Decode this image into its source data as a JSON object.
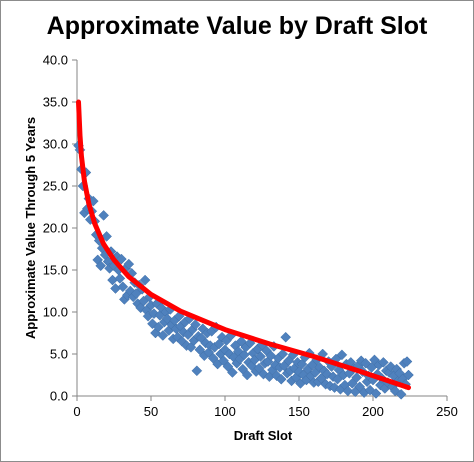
{
  "chart_data": {
    "type": "scatter",
    "title": "Approximate Value by Draft Slot",
    "xlabel": "Draft Slot",
    "ylabel": "Approximate Value Through 5 Years",
    "xlim": [
      0,
      250
    ],
    "ylim": [
      0,
      40
    ],
    "x_ticks": [
      "0",
      "50",
      "100",
      "150",
      "200",
      "250"
    ],
    "y_ticks": [
      "0.0",
      "5.0",
      "10.0",
      "15.0",
      "20.0",
      "25.0",
      "30.0",
      "35.0",
      "40.0"
    ],
    "grid": false,
    "legend": "none",
    "colors": {
      "points": "#4f81bd",
      "trendline": "#ff0000"
    },
    "series": [
      {
        "kind": "points",
        "points": [
          [
            1,
            29.8
          ],
          [
            2,
            29.3
          ],
          [
            3,
            27.0
          ],
          [
            4,
            25.0
          ],
          [
            5,
            21.8
          ],
          [
            6,
            26.6
          ],
          [
            7,
            22.3
          ],
          [
            8,
            23.5
          ],
          [
            9,
            21.0
          ],
          [
            10,
            22.0
          ],
          [
            11,
            23.2
          ],
          [
            12,
            20.8
          ],
          [
            13,
            19.2
          ],
          [
            14,
            16.2
          ],
          [
            15,
            18.5
          ],
          [
            16,
            15.5
          ],
          [
            17,
            17.6
          ],
          [
            18,
            21.5
          ],
          [
            19,
            16.8
          ],
          [
            20,
            19.0
          ],
          [
            21,
            16.0
          ],
          [
            22,
            15.2
          ],
          [
            23,
            17.2
          ],
          [
            24,
            13.8
          ],
          [
            25,
            15.5
          ],
          [
            26,
            12.8
          ],
          [
            27,
            16.6
          ],
          [
            28,
            15.0
          ],
          [
            29,
            14.0
          ],
          [
            30,
            16.3
          ],
          [
            31,
            13.0
          ],
          [
            32,
            11.5
          ],
          [
            33,
            15.2
          ],
          [
            34,
            12.0
          ],
          [
            35,
            15.7
          ],
          [
            36,
            12.5
          ],
          [
            37,
            14.6
          ],
          [
            38,
            11.8
          ],
          [
            39,
            13.5
          ],
          [
            40,
            12.2
          ],
          [
            41,
            11.0
          ],
          [
            42,
            13.2
          ],
          [
            43,
            10.5
          ],
          [
            44,
            12.7
          ],
          [
            45,
            11.3
          ],
          [
            46,
            13.8
          ],
          [
            47,
            10.2
          ],
          [
            48,
            9.5
          ],
          [
            49,
            11.8
          ],
          [
            50,
            10.8
          ],
          [
            51,
            8.6
          ],
          [
            52,
            9.8
          ],
          [
            53,
            7.5
          ],
          [
            54,
            11.0
          ],
          [
            55,
            8.2
          ],
          [
            56,
            9.6
          ],
          [
            57,
            10.5
          ],
          [
            58,
            7.2
          ],
          [
            59,
            8.8
          ],
          [
            60,
            10.0
          ],
          [
            61,
            9.2
          ],
          [
            62,
            7.8
          ],
          [
            63,
            10.3
          ],
          [
            64,
            8.5
          ],
          [
            65,
            6.8
          ],
          [
            66,
            9.0
          ],
          [
            67,
            8.0
          ],
          [
            68,
            7.0
          ],
          [
            69,
            9.5
          ],
          [
            70,
            8.3
          ],
          [
            71,
            6.5
          ],
          [
            72,
            7.6
          ],
          [
            73,
            8.8
          ],
          [
            74,
            6.0
          ],
          [
            75,
            7.3
          ],
          [
            76,
            9.2
          ],
          [
            77,
            5.8
          ],
          [
            78,
            7.9
          ],
          [
            79,
            6.6
          ],
          [
            80,
            8.5
          ],
          [
            81,
            3.0
          ],
          [
            82,
            7.1
          ],
          [
            83,
            5.5
          ],
          [
            84,
            6.9
          ],
          [
            85,
            8.0
          ],
          [
            86,
            4.8
          ],
          [
            87,
            6.3
          ],
          [
            88,
            7.5
          ],
          [
            89,
            5.2
          ],
          [
            90,
            6.0
          ],
          [
            91,
            7.7
          ],
          [
            92,
            4.5
          ],
          [
            93,
            5.8
          ],
          [
            94,
            8.2
          ],
          [
            95,
            3.8
          ],
          [
            96,
            6.2
          ],
          [
            97,
            5.0
          ],
          [
            98,
            7.0
          ],
          [
            99,
            4.2
          ],
          [
            100,
            5.5
          ],
          [
            101,
            6.6
          ],
          [
            102,
            3.5
          ],
          [
            103,
            5.0
          ],
          [
            104,
            7.2
          ],
          [
            105,
            2.8
          ],
          [
            106,
            4.6
          ],
          [
            107,
            6.0
          ],
          [
            108,
            3.9
          ],
          [
            109,
            5.3
          ],
          [
            110,
            4.4
          ],
          [
            111,
            6.5
          ],
          [
            112,
            3.2
          ],
          [
            113,
            4.9
          ],
          [
            114,
            5.8
          ],
          [
            115,
            2.5
          ],
          [
            116,
            4.0
          ],
          [
            117,
            6.3
          ],
          [
            118,
            3.6
          ],
          [
            119,
            5.1
          ],
          [
            120,
            4.3
          ],
          [
            121,
            2.9
          ],
          [
            122,
            5.6
          ],
          [
            123,
            3.3
          ],
          [
            124,
            4.7
          ],
          [
            125,
            6.1
          ],
          [
            126,
            2.6
          ],
          [
            127,
            3.9
          ],
          [
            128,
            5.4
          ],
          [
            129,
            4.1
          ],
          [
            130,
            2.3
          ],
          [
            131,
            4.8
          ],
          [
            132,
            3.1
          ],
          [
            133,
            5.9
          ],
          [
            134,
            3.7
          ],
          [
            135,
            2.4
          ],
          [
            136,
            4.5
          ],
          [
            137,
            3.4
          ],
          [
            138,
            2.0
          ],
          [
            139,
            5.0
          ],
          [
            140,
            3.6
          ],
          [
            141,
            7.0
          ],
          [
            142,
            2.7
          ],
          [
            143,
            4.2
          ],
          [
            144,
            3.0
          ],
          [
            145,
            1.8
          ],
          [
            146,
            4.9
          ],
          [
            147,
            3.3
          ],
          [
            148,
            2.2
          ],
          [
            149,
            4.0
          ],
          [
            150,
            2.9
          ],
          [
            151,
            1.5
          ],
          [
            152,
            3.8
          ],
          [
            153,
            2.5
          ],
          [
            154,
            4.6
          ],
          [
            155,
            1.9
          ],
          [
            156,
            3.2
          ],
          [
            157,
            5.1
          ],
          [
            158,
            2.4
          ],
          [
            159,
            3.7
          ],
          [
            160,
            1.6
          ],
          [
            161,
            2.8
          ],
          [
            162,
            4.3
          ],
          [
            163,
            1.7
          ],
          [
            164,
            3.4
          ],
          [
            165,
            2.1
          ],
          [
            166,
            5.0
          ],
          [
            167,
            3.0
          ],
          [
            168,
            1.4
          ],
          [
            169,
            2.6
          ],
          [
            170,
            4.1
          ],
          [
            171,
            1.2
          ],
          [
            172,
            3.5
          ],
          [
            173,
            2.3
          ],
          [
            174,
            1.0
          ],
          [
            175,
            4.4
          ],
          [
            176,
            2.0
          ],
          [
            177,
            3.1
          ],
          [
            178,
            0.8
          ],
          [
            179,
            4.9
          ],
          [
            180,
            2.5
          ],
          [
            181,
            1.3
          ],
          [
            182,
            3.8
          ],
          [
            183,
            0.6
          ],
          [
            184,
            2.7
          ],
          [
            185,
            4.0
          ],
          [
            186,
            1.5
          ],
          [
            187,
            3.3
          ],
          [
            188,
            0.5
          ],
          [
            189,
            2.2
          ],
          [
            190,
            3.6
          ],
          [
            191,
            1.1
          ],
          [
            192,
            4.2
          ],
          [
            193,
            2.9
          ],
          [
            194,
            0.4
          ],
          [
            195,
            3.9
          ],
          [
            196,
            1.7
          ],
          [
            197,
            2.4
          ],
          [
            198,
            0.7
          ],
          [
            199,
            3.4
          ],
          [
            200,
            1.9
          ],
          [
            201,
            4.3
          ],
          [
            202,
            0.3
          ],
          [
            203,
            2.6
          ],
          [
            204,
            3.7
          ],
          [
            205,
            1.3
          ],
          [
            206,
            2.1
          ],
          [
            207,
            4.0
          ],
          [
            208,
            0.9
          ],
          [
            209,
            3.0
          ],
          [
            210,
            1.6
          ],
          [
            211,
            2.8
          ],
          [
            212,
            3.5
          ],
          [
            213,
            1.1
          ],
          [
            214,
            2.4
          ],
          [
            215,
            0.6
          ],
          [
            216,
            3.2
          ],
          [
            217,
            1.8
          ],
          [
            218,
            2.7
          ],
          [
            219,
            0.2
          ],
          [
            220,
            2.0
          ],
          [
            221,
            3.9
          ],
          [
            222,
            1.4
          ],
          [
            223,
            4.1
          ],
          [
            224,
            2.5
          ]
        ]
      },
      {
        "kind": "trendline",
        "x": [
          1,
          2,
          3,
          5,
          8,
          12,
          18,
          25,
          35,
          50,
          70,
          100,
          130,
          160,
          190,
          224
        ],
        "y": [
          35.0,
          31.0,
          28.6,
          25.6,
          22.9,
          20.5,
          18.1,
          16.2,
          14.2,
          12.1,
          10.1,
          7.9,
          6.2,
          4.7,
          3.0,
          1.0
        ]
      }
    ]
  }
}
